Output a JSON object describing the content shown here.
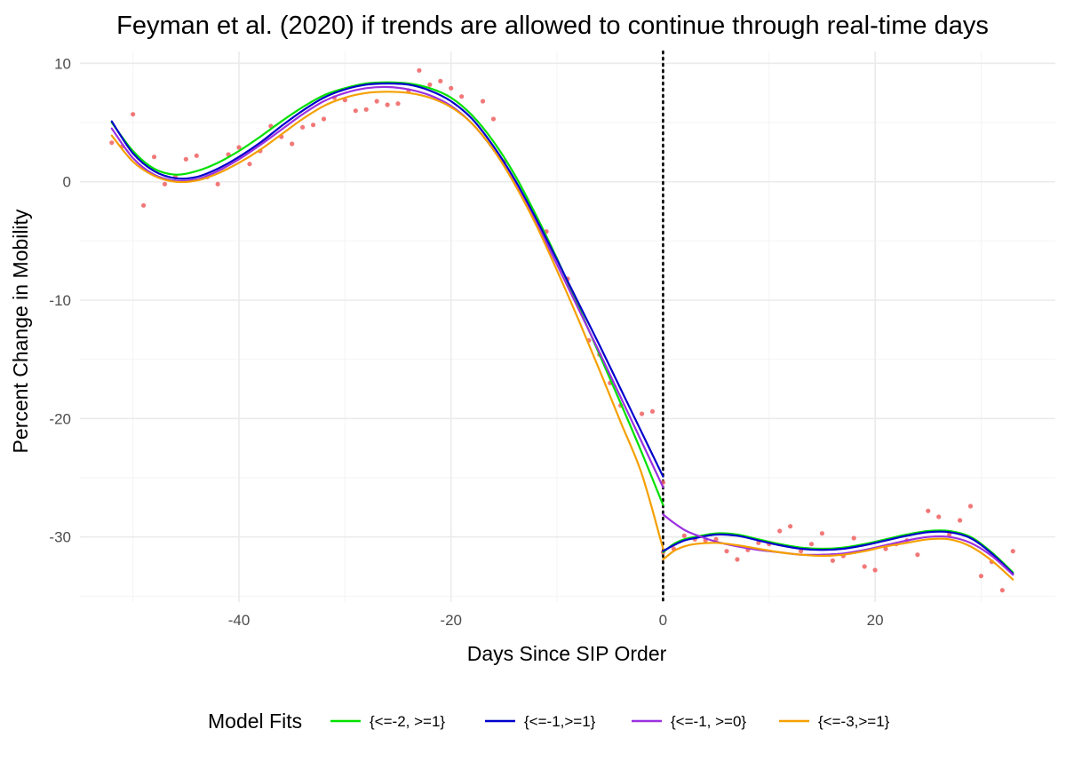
{
  "chart_data": {
    "type": "line",
    "title": "Feyman et al. (2020) if trends are allowed to continue through real-time days",
    "xlabel": "Days Since SIP Order",
    "ylabel": "Percent Change in Mobility",
    "xlim": [
      -55,
      37
    ],
    "ylim": [
      -35.5,
      11
    ],
    "x_ticks": [
      -40,
      -20,
      0,
      20
    ],
    "y_ticks": [
      10,
      0,
      -10,
      -20,
      -30
    ],
    "grid": true,
    "vline": {
      "x": 0,
      "style": "dotted",
      "color": "#000000"
    },
    "legend": {
      "title": "Model Fits",
      "position": "bottom"
    },
    "scatter": {
      "color": "#f06060",
      "points": [
        [
          -52,
          3.3
        ],
        [
          -51,
          3.0
        ],
        [
          -50,
          5.7
        ],
        [
          -49,
          -2.0
        ],
        [
          -48,
          2.1
        ],
        [
          -47,
          -0.2
        ],
        [
          -46,
          0.4
        ],
        [
          -45,
          1.9
        ],
        [
          -44,
          2.2
        ],
        [
          -43,
          0.4
        ],
        [
          -42,
          -0.2
        ],
        [
          -41,
          2.3
        ],
        [
          -40,
          2.9
        ],
        [
          -39,
          1.5
        ],
        [
          -38,
          2.6
        ],
        [
          -37,
          4.7
        ],
        [
          -36,
          3.8
        ],
        [
          -35,
          3.2
        ],
        [
          -34,
          4.6
        ],
        [
          -33,
          4.8
        ],
        [
          -32,
          5.3
        ],
        [
          -31,
          7.1
        ],
        [
          -30,
          6.9
        ],
        [
          -29,
          6.0
        ],
        [
          -28,
          6.1
        ],
        [
          -27,
          6.8
        ],
        [
          -26,
          6.5
        ],
        [
          -25,
          6.6
        ],
        [
          -24,
          7.7
        ],
        [
          -23,
          9.4
        ],
        [
          -22,
          8.2
        ],
        [
          -21,
          8.5
        ],
        [
          -20,
          7.9
        ],
        [
          -19,
          7.2
        ],
        [
          -17,
          6.8
        ],
        [
          -16,
          5.3
        ],
        [
          -15,
          1.7
        ],
        [
          -13,
          -1.6
        ],
        [
          -11,
          -4.2
        ],
        [
          -9,
          -8.2
        ],
        [
          -7,
          -13.4
        ],
        [
          -6,
          -14.6
        ],
        [
          -5,
          -17.0
        ],
        [
          -4,
          -18.9
        ],
        [
          -2,
          -19.6
        ],
        [
          -1,
          -19.4
        ],
        [
          0,
          -25.4
        ],
        [
          0,
          -31.3
        ],
        [
          1,
          -31.0
        ],
        [
          2,
          -29.9
        ],
        [
          3,
          -30.2
        ],
        [
          4,
          -30.3
        ],
        [
          5,
          -30.2
        ],
        [
          6,
          -31.2
        ],
        [
          7,
          -31.9
        ],
        [
          8,
          -31.1
        ],
        [
          9,
          -30.5
        ],
        [
          10,
          -30.6
        ],
        [
          11,
          -29.5
        ],
        [
          12,
          -29.1
        ],
        [
          13,
          -31.2
        ],
        [
          14,
          -30.6
        ],
        [
          15,
          -29.7
        ],
        [
          16,
          -32.0
        ],
        [
          17,
          -31.6
        ],
        [
          18,
          -30.1
        ],
        [
          19,
          -32.5
        ],
        [
          20,
          -32.8
        ],
        [
          21,
          -31.0
        ],
        [
          22,
          -30.6
        ],
        [
          23,
          -30.3
        ],
        [
          24,
          -31.5
        ],
        [
          25,
          -27.8
        ],
        [
          26,
          -28.3
        ],
        [
          27,
          -29.8
        ],
        [
          28,
          -28.6
        ],
        [
          29,
          -27.4
        ],
        [
          30,
          -33.3
        ],
        [
          31,
          -32.1
        ],
        [
          32,
          -34.5
        ],
        [
          33,
          -31.2
        ]
      ]
    },
    "series": [
      {
        "name": "{<=-2, >=1}",
        "color": "#00e000",
        "pre": [
          [
            -52,
            5.0
          ],
          [
            -50,
            2.6
          ],
          [
            -48,
            1.1
          ],
          [
            -46,
            0.6
          ],
          [
            -44,
            0.9
          ],
          [
            -42,
            1.6
          ],
          [
            -40,
            2.6
          ],
          [
            -38,
            3.8
          ],
          [
            -36,
            5.1
          ],
          [
            -34,
            6.3
          ],
          [
            -32,
            7.3
          ],
          [
            -30,
            7.9
          ],
          [
            -28,
            8.3
          ],
          [
            -26,
            8.4
          ],
          [
            -24,
            8.3
          ],
          [
            -22,
            7.9
          ],
          [
            -20,
            7.1
          ],
          [
            -18,
            5.6
          ],
          [
            -16,
            3.4
          ],
          [
            -14,
            0.6
          ],
          [
            -12,
            -2.8
          ],
          [
            -10,
            -6.5
          ],
          [
            -8,
            -10.5
          ],
          [
            -6,
            -14.6
          ],
          [
            -4,
            -18.7
          ],
          [
            -2,
            -22.9
          ],
          [
            0,
            -27.3
          ]
        ],
        "post": [
          [
            0,
            -31.3
          ],
          [
            1,
            -30.6
          ],
          [
            2,
            -30.2
          ],
          [
            3,
            -30.0
          ],
          [
            5,
            -29.7
          ],
          [
            7,
            -29.8
          ],
          [
            9,
            -30.2
          ],
          [
            11,
            -30.6
          ],
          [
            13,
            -30.9
          ],
          [
            15,
            -31.0
          ],
          [
            17,
            -30.9
          ],
          [
            19,
            -30.6
          ],
          [
            21,
            -30.2
          ],
          [
            23,
            -29.8
          ],
          [
            25,
            -29.5
          ],
          [
            27,
            -29.5
          ],
          [
            29,
            -30.0
          ],
          [
            31,
            -31.3
          ],
          [
            33,
            -33.0
          ]
        ]
      },
      {
        "name": "{<=-1,>=1}",
        "color": "#0000cc",
        "pre": [
          [
            -52,
            5.1
          ],
          [
            -50,
            2.4
          ],
          [
            -48,
            0.9
          ],
          [
            -46,
            0.3
          ],
          [
            -44,
            0.4
          ],
          [
            -42,
            1.1
          ],
          [
            -40,
            2.1
          ],
          [
            -38,
            3.3
          ],
          [
            -36,
            4.7
          ],
          [
            -34,
            6.0
          ],
          [
            -32,
            7.1
          ],
          [
            -30,
            7.8
          ],
          [
            -28,
            8.2
          ],
          [
            -26,
            8.3
          ],
          [
            -24,
            8.2
          ],
          [
            -22,
            7.7
          ],
          [
            -20,
            6.8
          ],
          [
            -18,
            5.3
          ],
          [
            -16,
            3.0
          ],
          [
            -14,
            0.2
          ],
          [
            -12,
            -3.1
          ],
          [
            -10,
            -6.6
          ],
          [
            -8,
            -10.2
          ],
          [
            -6,
            -13.8
          ],
          [
            -4,
            -17.5
          ],
          [
            -2,
            -21.2
          ],
          [
            0,
            -24.9
          ]
        ],
        "post": [
          [
            0,
            -31.2
          ],
          [
            1,
            -30.7
          ],
          [
            2,
            -30.3
          ],
          [
            3,
            -30.1
          ],
          [
            5,
            -29.8
          ],
          [
            7,
            -29.9
          ],
          [
            9,
            -30.3
          ],
          [
            11,
            -30.7
          ],
          [
            13,
            -31.0
          ],
          [
            15,
            -31.1
          ],
          [
            17,
            -31.0
          ],
          [
            19,
            -30.7
          ],
          [
            21,
            -30.3
          ],
          [
            23,
            -29.9
          ],
          [
            25,
            -29.6
          ],
          [
            27,
            -29.6
          ],
          [
            29,
            -30.1
          ],
          [
            31,
            -31.4
          ],
          [
            33,
            -33.1
          ]
        ]
      },
      {
        "name": "{<=-1, >=0}",
        "color": "#9b30e0",
        "pre": [
          [
            -52,
            4.5
          ],
          [
            -50,
            2.0
          ],
          [
            -48,
            0.6
          ],
          [
            -46,
            0.1
          ],
          [
            -44,
            0.2
          ],
          [
            -42,
            0.9
          ],
          [
            -40,
            1.9
          ],
          [
            -38,
            3.1
          ],
          [
            -36,
            4.4
          ],
          [
            -34,
            5.7
          ],
          [
            -32,
            6.8
          ],
          [
            -30,
            7.5
          ],
          [
            -28,
            7.9
          ],
          [
            -26,
            8.0
          ],
          [
            -24,
            7.8
          ],
          [
            -22,
            7.3
          ],
          [
            -20,
            6.4
          ],
          [
            -18,
            4.9
          ],
          [
            -16,
            2.7
          ],
          [
            -14,
            -0.1
          ],
          [
            -12,
            -3.4
          ],
          [
            -10,
            -7.0
          ],
          [
            -8,
            -10.7
          ],
          [
            -6,
            -14.4
          ],
          [
            -4,
            -18.2
          ],
          [
            -2,
            -22.0
          ],
          [
            0,
            -25.8
          ]
        ],
        "post": [
          [
            0,
            -28.1
          ],
          [
            1,
            -28.8
          ],
          [
            2,
            -29.4
          ],
          [
            3,
            -29.8
          ],
          [
            5,
            -30.4
          ],
          [
            7,
            -30.8
          ],
          [
            9,
            -31.1
          ],
          [
            11,
            -31.3
          ],
          [
            13,
            -31.5
          ],
          [
            15,
            -31.5
          ],
          [
            17,
            -31.4
          ],
          [
            19,
            -31.1
          ],
          [
            21,
            -30.7
          ],
          [
            23,
            -30.3
          ],
          [
            25,
            -30.0
          ],
          [
            27,
            -30.0
          ],
          [
            29,
            -30.5
          ],
          [
            31,
            -31.6
          ],
          [
            33,
            -33.2
          ]
        ]
      },
      {
        "name": "{<=-3,>=1}",
        "color": "#f5a000",
        "pre": [
          [
            -52,
            3.9
          ],
          [
            -50,
            1.7
          ],
          [
            -48,
            0.5
          ],
          [
            -46,
            0.0
          ],
          [
            -44,
            0.1
          ],
          [
            -42,
            0.7
          ],
          [
            -40,
            1.6
          ],
          [
            -38,
            2.7
          ],
          [
            -36,
            4.0
          ],
          [
            -34,
            5.3
          ],
          [
            -32,
            6.4
          ],
          [
            -30,
            7.1
          ],
          [
            -28,
            7.5
          ],
          [
            -26,
            7.6
          ],
          [
            -24,
            7.5
          ],
          [
            -22,
            7.1
          ],
          [
            -20,
            6.3
          ],
          [
            -18,
            4.9
          ],
          [
            -16,
            2.7
          ],
          [
            -14,
            -0.2
          ],
          [
            -12,
            -3.6
          ],
          [
            -10,
            -7.5
          ],
          [
            -8,
            -11.6
          ],
          [
            -6,
            -15.9
          ],
          [
            -4,
            -20.3
          ],
          [
            -2,
            -24.7
          ],
          [
            0,
            -31.0
          ]
        ],
        "post": [
          [
            0,
            -31.9
          ],
          [
            1,
            -31.2
          ],
          [
            2,
            -30.8
          ],
          [
            3,
            -30.6
          ],
          [
            5,
            -30.5
          ],
          [
            7,
            -30.7
          ],
          [
            9,
            -31.0
          ],
          [
            11,
            -31.3
          ],
          [
            13,
            -31.5
          ],
          [
            15,
            -31.6
          ],
          [
            17,
            -31.5
          ],
          [
            19,
            -31.2
          ],
          [
            21,
            -30.8
          ],
          [
            23,
            -30.5
          ],
          [
            25,
            -30.2
          ],
          [
            27,
            -30.2
          ],
          [
            29,
            -30.8
          ],
          [
            31,
            -32.0
          ],
          [
            33,
            -33.6
          ]
        ]
      }
    ]
  }
}
